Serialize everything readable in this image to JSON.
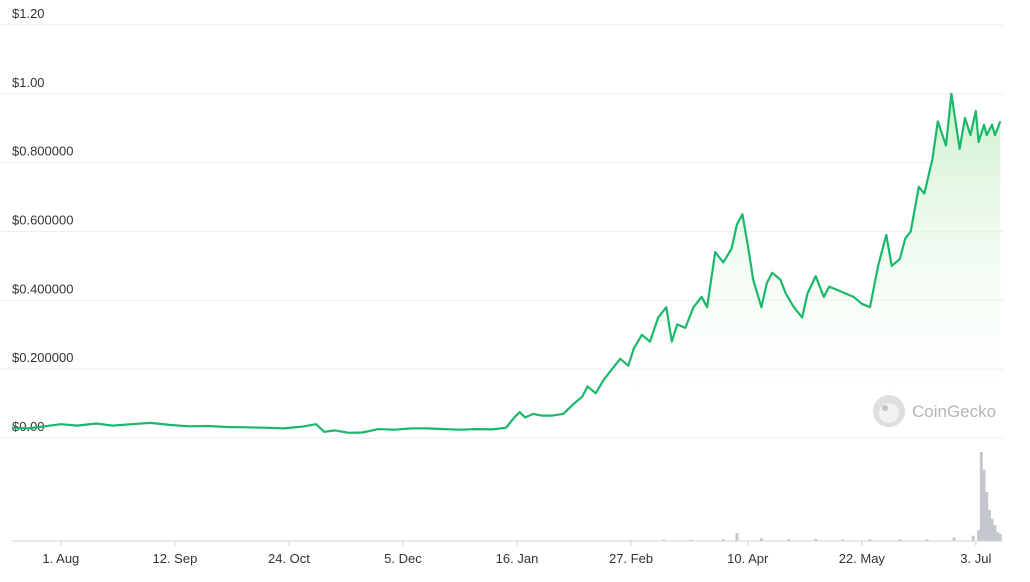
{
  "chart_data": {
    "type": "area",
    "y_tick_labels": [
      "$0.00",
      "$0.200000",
      "$0.400000",
      "$0.600000",
      "$0.800000",
      "$1.00",
      "$1.20"
    ],
    "y_tick_values": [
      0,
      0.2,
      0.4,
      0.6,
      0.8,
      1.0,
      1.2
    ],
    "ylim": [
      0,
      1.2
    ],
    "x_tick_labels": [
      "1. Aug",
      "12. Sep",
      "24. Oct",
      "5. Dec",
      "16. Jan",
      "27. Feb",
      "10. Apr",
      "22. May",
      "3. Jul"
    ],
    "x_tick_dates": [
      "2023-08-01",
      "2023-09-12",
      "2023-10-24",
      "2023-12-05",
      "2024-01-16",
      "2024-02-27",
      "2024-04-10",
      "2024-05-22",
      "2024-07-03"
    ],
    "xlim": [
      "2023-07-14",
      "2024-07-13"
    ],
    "grid": "horizontal",
    "colors": {
      "line": "#19b86b",
      "fill_top": "#c8efc8",
      "grid": "#eeeeee",
      "volume": "#c4c7ce"
    },
    "watermark": "CoinGecko",
    "price_series": {
      "x": [
        "2023-07-14",
        "2023-07-20",
        "2023-07-26",
        "2023-08-01",
        "2023-08-07",
        "2023-08-14",
        "2023-08-20",
        "2023-08-27",
        "2023-09-03",
        "2023-09-10",
        "2023-09-17",
        "2023-09-24",
        "2023-10-01",
        "2023-10-08",
        "2023-10-15",
        "2023-10-22",
        "2023-10-29",
        "2023-11-03",
        "2023-11-06",
        "2023-11-10",
        "2023-11-15",
        "2023-11-20",
        "2023-11-26",
        "2023-12-02",
        "2023-12-08",
        "2023-12-14",
        "2023-12-20",
        "2023-12-26",
        "2024-01-01",
        "2024-01-07",
        "2024-01-12",
        "2024-01-15",
        "2024-01-17",
        "2024-01-19",
        "2024-01-22",
        "2024-01-25",
        "2024-01-29",
        "2024-02-02",
        "2024-02-06",
        "2024-02-09",
        "2024-02-11",
        "2024-02-14",
        "2024-02-17",
        "2024-02-20",
        "2024-02-23",
        "2024-02-26",
        "2024-02-28",
        "2024-03-02",
        "2024-03-05",
        "2024-03-08",
        "2024-03-11",
        "2024-03-13",
        "2024-03-15",
        "2024-03-18",
        "2024-03-21",
        "2024-03-24",
        "2024-03-26",
        "2024-03-29",
        "2024-04-01",
        "2024-04-04",
        "2024-04-06",
        "2024-04-08",
        "2024-04-10",
        "2024-04-12",
        "2024-04-15",
        "2024-04-17",
        "2024-04-19",
        "2024-04-22",
        "2024-04-24",
        "2024-04-27",
        "2024-04-30",
        "2024-05-02",
        "2024-05-05",
        "2024-05-08",
        "2024-05-10",
        "2024-05-13",
        "2024-05-16",
        "2024-05-19",
        "2024-05-22",
        "2024-05-25",
        "2024-05-28",
        "2024-05-31",
        "2024-06-02",
        "2024-06-05",
        "2024-06-07",
        "2024-06-09",
        "2024-06-12",
        "2024-06-14",
        "2024-06-17",
        "2024-06-19",
        "2024-06-22",
        "2024-06-24",
        "2024-06-27",
        "2024-06-29",
        "2024-07-01",
        "2024-07-03",
        "2024-07-04",
        "2024-07-06",
        "2024-07-07",
        "2024-07-09",
        "2024-07-10",
        "2024-07-12"
      ],
      "y": [
        0.03,
        0.028,
        0.034,
        0.04,
        0.036,
        0.042,
        0.036,
        0.04,
        0.044,
        0.038,
        0.034,
        0.035,
        0.032,
        0.031,
        0.03,
        0.028,
        0.033,
        0.04,
        0.018,
        0.022,
        0.015,
        0.016,
        0.026,
        0.024,
        0.028,
        0.028,
        0.026,
        0.024,
        0.026,
        0.025,
        0.03,
        0.06,
        0.075,
        0.06,
        0.07,
        0.065,
        0.065,
        0.07,
        0.1,
        0.12,
        0.15,
        0.13,
        0.17,
        0.2,
        0.23,
        0.21,
        0.26,
        0.3,
        0.28,
        0.35,
        0.38,
        0.28,
        0.33,
        0.32,
        0.38,
        0.41,
        0.38,
        0.54,
        0.51,
        0.55,
        0.62,
        0.65,
        0.56,
        0.46,
        0.38,
        0.45,
        0.48,
        0.46,
        0.42,
        0.38,
        0.35,
        0.42,
        0.47,
        0.41,
        0.44,
        0.43,
        0.42,
        0.41,
        0.39,
        0.38,
        0.5,
        0.59,
        0.5,
        0.52,
        0.58,
        0.6,
        0.73,
        0.71,
        0.81,
        0.92,
        0.85,
        1.0,
        0.84,
        0.93,
        0.88,
        0.95,
        0.86,
        0.91,
        0.88,
        0.91,
        0.88,
        0.92
      ]
    },
    "volume_series": {
      "x": [
        "2024-02-27",
        "2024-03-10",
        "2024-03-20",
        "2024-04-01",
        "2024-04-06",
        "2024-04-15",
        "2024-04-25",
        "2024-05-05",
        "2024-05-15",
        "2024-05-25",
        "2024-06-05",
        "2024-06-15",
        "2024-06-25",
        "2024-07-02",
        "2024-07-04",
        "2024-07-05",
        "2024-07-06",
        "2024-07-07",
        "2024-07-08",
        "2024-07-09",
        "2024-07-10",
        "2024-07-11",
        "2024-07-12"
      ],
      "y": [
        0.01,
        0.015,
        0.012,
        0.02,
        0.09,
        0.03,
        0.02,
        0.025,
        0.018,
        0.02,
        0.02,
        0.02,
        0.04,
        0.06,
        0.12,
        1.0,
        0.8,
        0.55,
        0.35,
        0.25,
        0.18,
        0.1,
        0.08
      ]
    }
  }
}
